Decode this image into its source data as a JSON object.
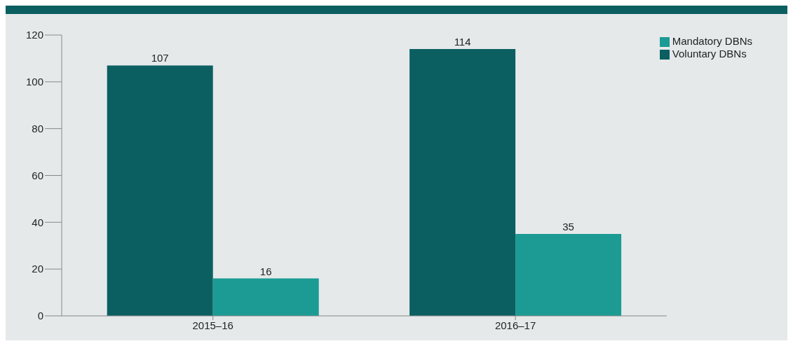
{
  "chart_data": {
    "type": "bar",
    "categories": [
      "2015–16",
      "2016–17"
    ],
    "series": [
      {
        "name": "Voluntary DBNs",
        "color": "#0b5f61",
        "values": [
          107,
          114
        ]
      },
      {
        "name": "Mandatory DBNs",
        "color": "#1b9b94",
        "values": [
          16,
          35
        ]
      }
    ],
    "ylim": [
      0,
      120
    ],
    "yticks": [
      0,
      20,
      40,
      60,
      80,
      100,
      120
    ],
    "grid": false,
    "legend": "top right",
    "data_labels": true
  }
}
